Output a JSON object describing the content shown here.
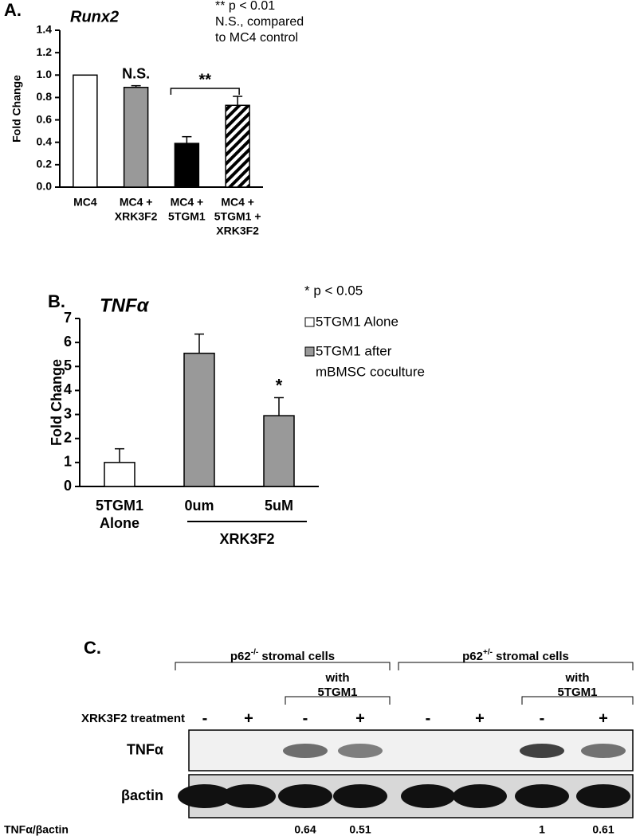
{
  "chart_data": [
    {
      "type": "bar",
      "panel_label": "A.",
      "title": "Runx2",
      "y_label": "Fold Change",
      "categories": [
        [
          "MC4"
        ],
        [
          "MC4 +",
          "XRK3F2"
        ],
        [
          "MC4 +",
          "5TGM1"
        ],
        [
          "MC4 +",
          "5TGM1 +",
          "XRK3F2"
        ]
      ],
      "values": [
        1,
        0.89,
        0.39,
        0.73
      ],
      "errors": [
        0,
        0.015,
        0.06,
        0.08
      ],
      "colors": [
        "#ffffff",
        "#999999",
        "#000000",
        "#ffffff"
      ],
      "hatched": [
        false,
        false,
        false,
        true
      ],
      "ylim": [
        0,
        1.4
      ],
      "yticks": [
        {
          "value": 0,
          "label": "0.0"
        },
        0.2,
        0.4,
        0.6,
        0.8,
        {
          "value": 1,
          "label": "1.0"
        },
        1.2,
        1.4
      ],
      "annotations": [
        {
          "text": "N.S.",
          "categories": [
            1
          ]
        },
        {
          "text": "**",
          "categories": [
            2,
            3
          ]
        }
      ],
      "notes": [
        "** p < 0.01",
        "N.S., compared",
        "to MC4 control"
      ]
    },
    {
      "type": "bar",
      "panel_label": "B.",
      "title": "TNFα",
      "y_label": "Fold Change",
      "categories": [
        [
          "5TGM1",
          "Alone"
        ],
        [
          "0um"
        ],
        [
          "5uM"
        ]
      ],
      "values": [
        1,
        5.55,
        2.95
      ],
      "errors": [
        0.57,
        0.8,
        0.75
      ],
      "colors": [
        "#ffffff",
        "#999999",
        "#999999"
      ],
      "hatched": [
        false,
        false,
        false
      ],
      "ylim": [
        0,
        7
      ],
      "yticks": [
        0,
        1,
        2,
        3,
        4,
        5,
        6,
        7
      ],
      "group_label": {
        "text": "XRK3F2",
        "categories": [
          1,
          2
        ]
      },
      "annotations": [
        {
          "text": "*",
          "categories": [
            2
          ]
        }
      ],
      "legend": {
        "note": "* p < 0.05",
        "entries": [
          {
            "label": [
              "5TGM1 Alone"
            ],
            "color": "#ffffff"
          },
          {
            "label": [
              "5TGM1 after",
              "mBMSC coculture"
            ],
            "color": "#999999"
          }
        ]
      }
    }
  ],
  "blot": {
    "panel_label": "C.",
    "groups": [
      {
        "label": {
          "base": "p62",
          "sup": "-/-",
          "rest": " stromal cells"
        },
        "lanes": [
          0,
          3
        ],
        "sub": {
          "label": [
            "with",
            "5TGM1"
          ],
          "lanes": [
            2,
            3
          ]
        }
      },
      {
        "label": {
          "base": "p62",
          "sup": "+/-",
          "rest": " stromal cells"
        },
        "lanes": [
          4,
          7
        ],
        "sub": {
          "label": [
            "with",
            "5TGM1"
          ],
          "lanes": [
            6,
            7
          ]
        }
      }
    ],
    "treatment_label": "XRK3F2 treatment",
    "treatment": [
      "-",
      "+",
      "-",
      "+",
      "-",
      "+",
      "-",
      "+"
    ],
    "rows": [
      "TNFα",
      "βactin"
    ],
    "ratio_label": "TNFα/βactin",
    "ratios": [
      null,
      null,
      0.64,
      0.51,
      null,
      null,
      1,
      0.61
    ]
  }
}
